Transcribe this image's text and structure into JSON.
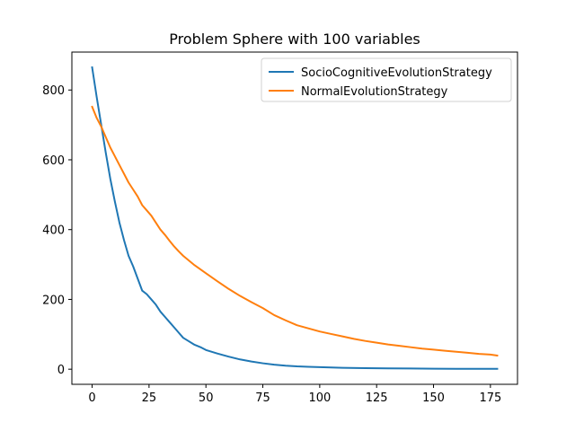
{
  "chart_data": {
    "type": "line",
    "title": "Problem Sphere with 100 variables",
    "xlabel": "",
    "ylabel": "",
    "xlim": [
      -8.9,
      186.9
    ],
    "ylim": [
      -43.3,
      908.7
    ],
    "xticks": [
      0,
      25,
      50,
      75,
      100,
      125,
      150,
      175
    ],
    "yticks": [
      0,
      200,
      400,
      600,
      800
    ],
    "grid": false,
    "legend_position": "top-right",
    "series": [
      {
        "name": "SocioCognitiveEvolutionStrategy",
        "color": "#1f77b4",
        "x": [
          0,
          2,
          4,
          6,
          8,
          10,
          12,
          14,
          16,
          18,
          20,
          22,
          24,
          26,
          28,
          30,
          32,
          34,
          36,
          38,
          40,
          42,
          45,
          48,
          50,
          55,
          60,
          65,
          70,
          75,
          80,
          85,
          90,
          95,
          100,
          110,
          120,
          130,
          140,
          150,
          160,
          170,
          178
        ],
        "y": [
          865,
          780,
          700,
          620,
          545,
          480,
          420,
          370,
          325,
          295,
          260,
          225,
          215,
          200,
          185,
          165,
          150,
          135,
          120,
          105,
          90,
          82,
          70,
          62,
          55,
          45,
          36,
          28,
          22,
          17,
          13,
          10,
          8,
          7,
          6,
          4,
          3,
          2.5,
          2,
          1.5,
          1.2,
          1,
          1
        ]
      },
      {
        "name": "NormalEvolutionStrategy",
        "color": "#ff7f0e",
        "x": [
          0,
          2,
          4,
          6,
          8,
          10,
          12,
          14,
          16,
          18,
          20,
          22,
          24,
          26,
          28,
          30,
          32,
          34,
          36,
          38,
          40,
          45,
          50,
          55,
          60,
          65,
          70,
          75,
          80,
          85,
          90,
          95,
          100,
          105,
          110,
          115,
          120,
          125,
          130,
          135,
          140,
          145,
          150,
          155,
          160,
          165,
          170,
          175,
          178
        ],
        "y": [
          752,
          720,
          695,
          665,
          635,
          610,
          585,
          560,
          535,
          515,
          495,
          470,
          455,
          440,
          420,
          400,
          385,
          368,
          352,
          338,
          325,
          298,
          275,
          252,
          230,
          210,
          192,
          175,
          155,
          140,
          126,
          117,
          108,
          101,
          94,
          87,
          81,
          76,
          71,
          67,
          63,
          59,
          56,
          53,
          50,
          47,
          44,
          42,
          39
        ]
      }
    ]
  }
}
